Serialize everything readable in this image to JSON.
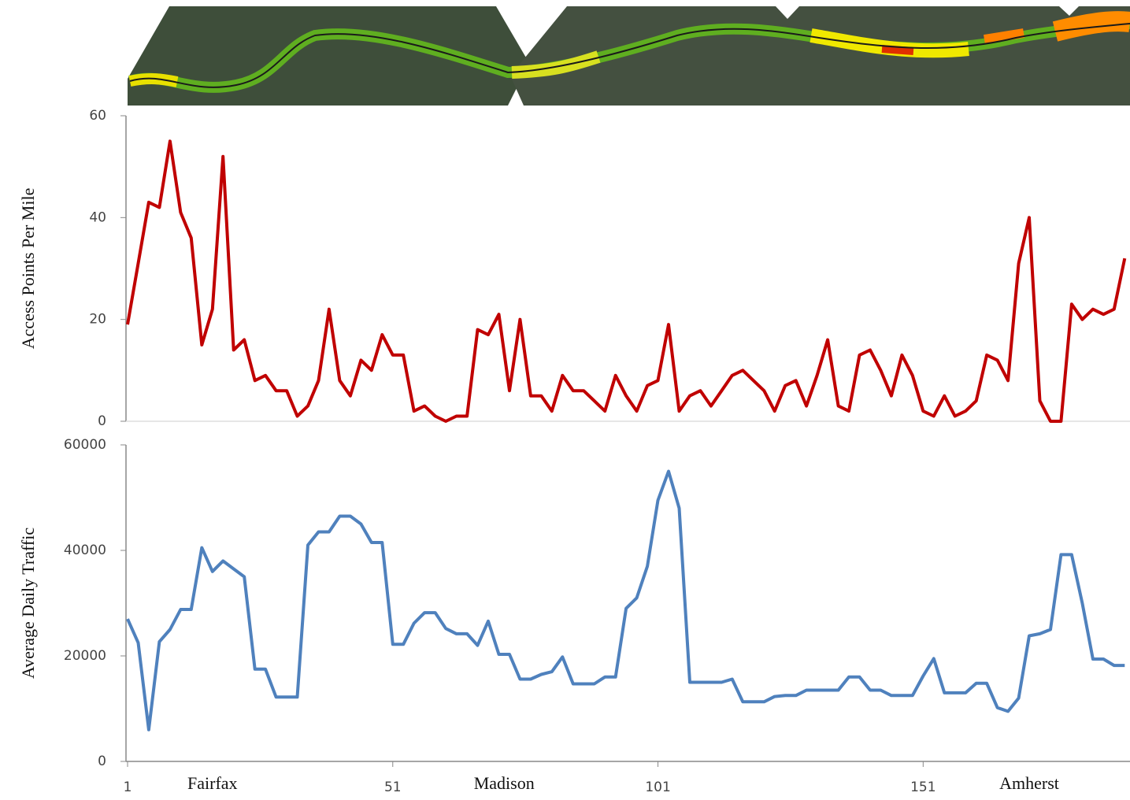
{
  "chart_data": [
    {
      "type": "line",
      "y_label": "Access Points Per Mile",
      "x": [
        1,
        3,
        5,
        7,
        9,
        11,
        13,
        15,
        17,
        19,
        21,
        23,
        25,
        27,
        29,
        31,
        33,
        35,
        37,
        39,
        41,
        43,
        45,
        47,
        49,
        51,
        53,
        55,
        57,
        59,
        61,
        63,
        65,
        67,
        69,
        71,
        73,
        75,
        77,
        79,
        81,
        83,
        85,
        87,
        89,
        91,
        93,
        95,
        97,
        99,
        101,
        103,
        105,
        107,
        109,
        111,
        113,
        115,
        117,
        119,
        121,
        123,
        125,
        127,
        129,
        131,
        133,
        135,
        137,
        139,
        141,
        143,
        145,
        147,
        149,
        151,
        153,
        155,
        157,
        159,
        161,
        163,
        165,
        167,
        169,
        171,
        173,
        175,
        177,
        179,
        181,
        183,
        185,
        187,
        189
      ],
      "series": [
        {
          "color": "#c00000",
          "values": [
            19,
            31,
            43,
            42,
            55,
            41,
            36,
            15,
            22,
            52,
            14,
            16,
            8,
            9,
            6,
            6,
            1,
            3,
            8,
            22,
            8,
            5,
            12,
            10,
            17,
            13,
            13,
            2,
            3,
            1,
            0,
            1,
            1,
            18,
            17,
            21,
            6,
            20,
            5,
            5,
            2,
            9,
            6,
            6,
            4,
            2,
            9,
            5,
            2,
            7,
            8,
            19,
            2,
            5,
            6,
            3,
            6,
            9,
            10,
            8,
            6,
            2,
            7,
            8,
            3,
            9,
            16,
            3,
            2,
            13,
            14,
            10,
            5,
            13,
            9,
            2,
            1,
            5,
            1,
            2,
            4,
            13,
            12,
            8,
            31,
            40,
            4,
            0,
            0,
            23,
            20,
            22,
            21,
            22,
            32
          ]
        }
      ],
      "xlim": [
        1,
        190
      ],
      "ylim": [
        0,
        60
      ],
      "yticks": [
        0,
        20,
        40,
        60
      ]
    },
    {
      "type": "line",
      "y_label": "Average Daily Traffic",
      "x": [
        1,
        3,
        5,
        7,
        9,
        11,
        13,
        15,
        17,
        19,
        21,
        23,
        25,
        27,
        29,
        31,
        33,
        35,
        37,
        39,
        41,
        43,
        45,
        47,
        49,
        51,
        53,
        55,
        57,
        59,
        61,
        63,
        65,
        67,
        69,
        71,
        73,
        75,
        77,
        79,
        81,
        83,
        85,
        87,
        89,
        91,
        93,
        95,
        97,
        99,
        101,
        103,
        105,
        107,
        109,
        111,
        113,
        115,
        117,
        119,
        121,
        123,
        125,
        127,
        129,
        131,
        133,
        135,
        137,
        139,
        141,
        143,
        145,
        147,
        149,
        151,
        153,
        155,
        157,
        159,
        161,
        163,
        165,
        167,
        169,
        171,
        173,
        175,
        177,
        179,
        181,
        183,
        185,
        187,
        189
      ],
      "series": [
        {
          "color": "#4f81bd",
          "values": [
            27000,
            22500,
            6000,
            22700,
            25000,
            28800,
            28800,
            40500,
            36000,
            38000,
            36500,
            35000,
            17500,
            17500,
            12200,
            12200,
            12200,
            41000,
            43500,
            43500,
            46500,
            46500,
            45000,
            41500,
            41500,
            22200,
            22200,
            26200,
            28200,
            28200,
            25200,
            24200,
            24200,
            22000,
            26600,
            20300,
            20300,
            15600,
            15600,
            16500,
            17000,
            19800,
            14700,
            14700,
            14700,
            16000,
            16000,
            29000,
            31000,
            37000,
            49500,
            55000,
            48000,
            15000,
            15000,
            15000,
            15000,
            15600,
            11300,
            11300,
            11300,
            12300,
            12500,
            12500,
            13500,
            13500,
            13500,
            13500,
            16000,
            16000,
            13500,
            13500,
            12500,
            12500,
            12500,
            16200,
            19500,
            13000,
            13000,
            13000,
            14800,
            14800,
            10200,
            9500,
            12000,
            23800,
            24200,
            25000,
            39200,
            39200,
            30000,
            19400,
            19400,
            18200,
            18200
          ]
        }
      ],
      "xlim": [
        1,
        190
      ],
      "ylim": [
        0,
        60000
      ],
      "yticks": [
        0,
        20000,
        40000,
        60000
      ],
      "xticks": [
        1,
        51,
        101,
        151
      ],
      "annotations": [
        {
          "text": "Fairfax",
          "x": 17
        },
        {
          "text": "Madison",
          "x": 72
        },
        {
          "text": "Amherst",
          "x": 171
        }
      ]
    }
  ]
}
